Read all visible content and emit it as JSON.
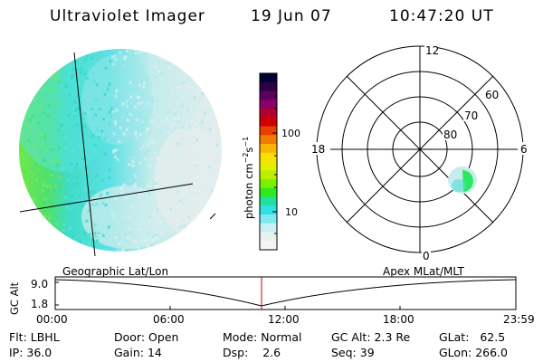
{
  "header": {
    "instrument": "Ultraviolet Imager",
    "date": "19 Jun 07",
    "time": "10:47:20 UT"
  },
  "colorbar": {
    "label_main": "photon cm",
    "label_exp1": "−2",
    "label_mid": "s",
    "label_exp2": "−1",
    "ticks": [
      "100",
      "10"
    ],
    "colors": [
      "#000033",
      "#2a0044",
      "#5a005e",
      "#8a0066",
      "#b40030",
      "#d00000",
      "#e84000",
      "#f07c00",
      "#f7b400",
      "#f8e000",
      "#e2f000",
      "#b8f000",
      "#7af000",
      "#2ee820",
      "#20e0a0",
      "#30e0e0",
      "#80e8f0",
      "#c8f0f4",
      "#e8f0f0",
      "#f4f4f4"
    ]
  },
  "polar_grid": {
    "mlt_labels": {
      "top": "12",
      "left": "18",
      "right": "6",
      "bottom": "0"
    },
    "lat_labels": [
      "60",
      "70",
      "80"
    ]
  },
  "timeline": {
    "left_label": "Geographic Lat/Lon",
    "right_label": "Apex MLat/MLT",
    "axis_title": "GC Alt",
    "y_ticks": [
      "9.0",
      "1.8"
    ],
    "x_ticks": [
      "00:00",
      "06:00",
      "12:00",
      "18:00",
      "23:59"
    ]
  },
  "status": {
    "flt_label": "Flt:",
    "flt_value": "LBHL",
    "ip_label": "IP:",
    "ip_value": "36.0",
    "door_label": "Door:",
    "door_value": "Open",
    "gain_label": "Gain:",
    "gain_value": "14",
    "mode_label": "Mode:",
    "mode_value": "Normal",
    "dsp_label": "Dsp:",
    "dsp_value": "2.6",
    "gcalt_label": "GC Alt:",
    "gcalt_value": "2.3 Re",
    "seq_label": "Seq:",
    "seq_value": "39",
    "glat_label": "GLat:",
    "glat_value": "62.5",
    "glon_label": "GLon:",
    "glon_value": "266.0"
  }
}
